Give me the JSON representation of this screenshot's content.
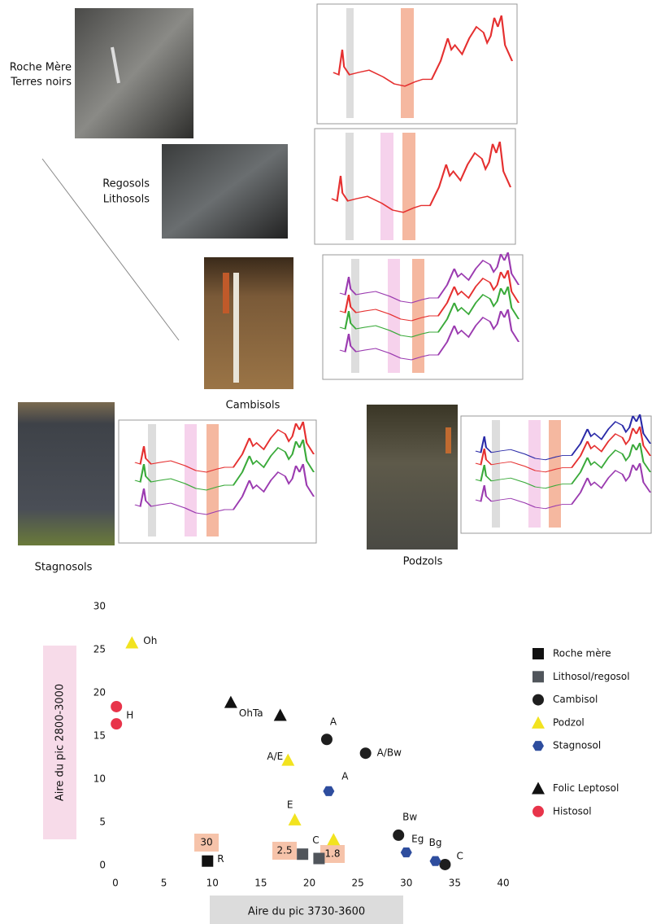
{
  "panels": [
    {
      "label": [
        "Roche Mère",
        "Terres noirs"
      ]
    },
    {
      "label": [
        "Regosols",
        "Lithosols"
      ]
    },
    {
      "label": [
        "Cambisols"
      ]
    },
    {
      "label": [
        "Stagnosols"
      ]
    },
    {
      "label": [
        "Podzols"
      ]
    }
  ],
  "chart_data": {
    "type": "scatter",
    "xlabel": "Aire du pic 3730-3600",
    "ylabel": "Aire du pic 2800-3000",
    "xlim": [
      0,
      40
    ],
    "xticks": [
      0,
      5,
      10,
      15,
      20,
      25,
      30,
      35,
      40
    ],
    "ylim": [
      0,
      30
    ],
    "yticks": [
      0,
      5,
      10,
      15,
      20,
      25,
      30
    ],
    "grid": false,
    "legend": "right",
    "annotations": [
      "30",
      "2.5",
      "1.8"
    ],
    "series": [
      {
        "name": "Roche mère",
        "color": "#111111",
        "marker": "square",
        "x": [
          9.5
        ],
        "values": [
          0.5
        ],
        "point_labels": [
          "R"
        ]
      },
      {
        "name": "Lithosol/regosol",
        "color": "#50555b",
        "marker": "square",
        "x": [
          19.3,
          21
        ],
        "values": [
          1.3,
          0.8
        ],
        "point_labels": [
          null,
          "C"
        ]
      },
      {
        "name": "Cambisol",
        "color": "#1e1e1e",
        "marker": "circle",
        "x": [
          21.8,
          25.8,
          29.2,
          34
        ],
        "values": [
          14.6,
          13,
          3.5,
          0.1
        ],
        "point_labels": [
          "A",
          "A/Bw",
          "Bw",
          "C"
        ]
      },
      {
        "name": "Podzol",
        "color": "#f2e31f",
        "marker": "triangle",
        "x": [
          1.7,
          17.8,
          18.5,
          22.5
        ],
        "values": [
          25.8,
          12.2,
          5.3,
          3
        ],
        "point_labels": [
          "Oh",
          "A/E",
          "E",
          null
        ]
      },
      {
        "name": "Stagnosol",
        "color": "#2e4d9e",
        "marker": "hexagon",
        "x": [
          22,
          30,
          33
        ],
        "values": [
          8.6,
          1.5,
          0.5
        ],
        "point_labels": [
          "A",
          "Eg",
          "Bg"
        ]
      },
      {
        "name": "Folic Leptosol",
        "color": "#111111",
        "marker": "triangle",
        "x": [
          11.9,
          17
        ],
        "values": [
          18.9,
          17.4
        ],
        "point_labels": [
          "OhTa",
          null
        ]
      },
      {
        "name": "Histosol",
        "color": "#e8344a",
        "marker": "circle",
        "x": [
          0.1,
          0.1
        ],
        "values": [
          18.4,
          16.4
        ],
        "point_labels": [
          null,
          "H"
        ]
      }
    ]
  }
}
